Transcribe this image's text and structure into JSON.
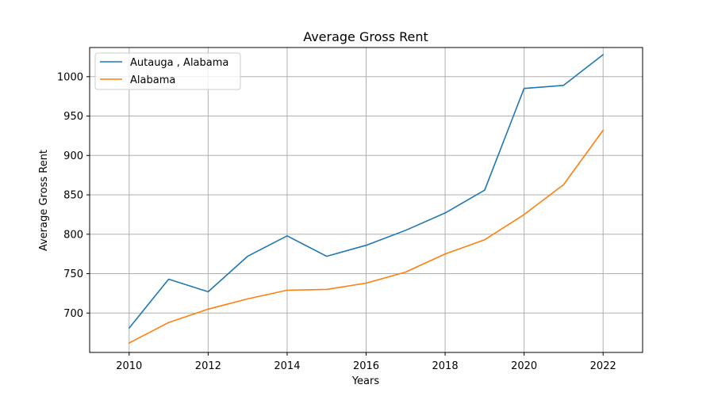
{
  "chart_data": {
    "type": "line",
    "title": "Average Gross Rent",
    "xlabel": "Years",
    "ylabel": "Average Gross Rent",
    "xlim": [
      2009,
      2023
    ],
    "ylim": [
      650,
      1037
    ],
    "xticks": [
      2010,
      2012,
      2014,
      2016,
      2018,
      2020,
      2022
    ],
    "yticks": [
      700,
      750,
      800,
      850,
      900,
      950,
      1000
    ],
    "grid": true,
    "legend_position": "top-left",
    "x": [
      2010,
      2011,
      2012,
      2013,
      2014,
      2015,
      2016,
      2017,
      2018,
      2019,
      2020,
      2021,
      2022
    ],
    "series": [
      {
        "name": "Autauga , Alabama",
        "color": "#1f77b4",
        "values": [
          681,
          743,
          727,
          772,
          798,
          772,
          786,
          805,
          827,
          856,
          985,
          989,
          1028
        ]
      },
      {
        "name": "Alabama",
        "color": "#ff7f0e",
        "values": [
          662,
          688,
          705,
          718,
          729,
          730,
          738,
          752,
          775,
          793,
          825,
          863,
          932
        ]
      }
    ]
  }
}
